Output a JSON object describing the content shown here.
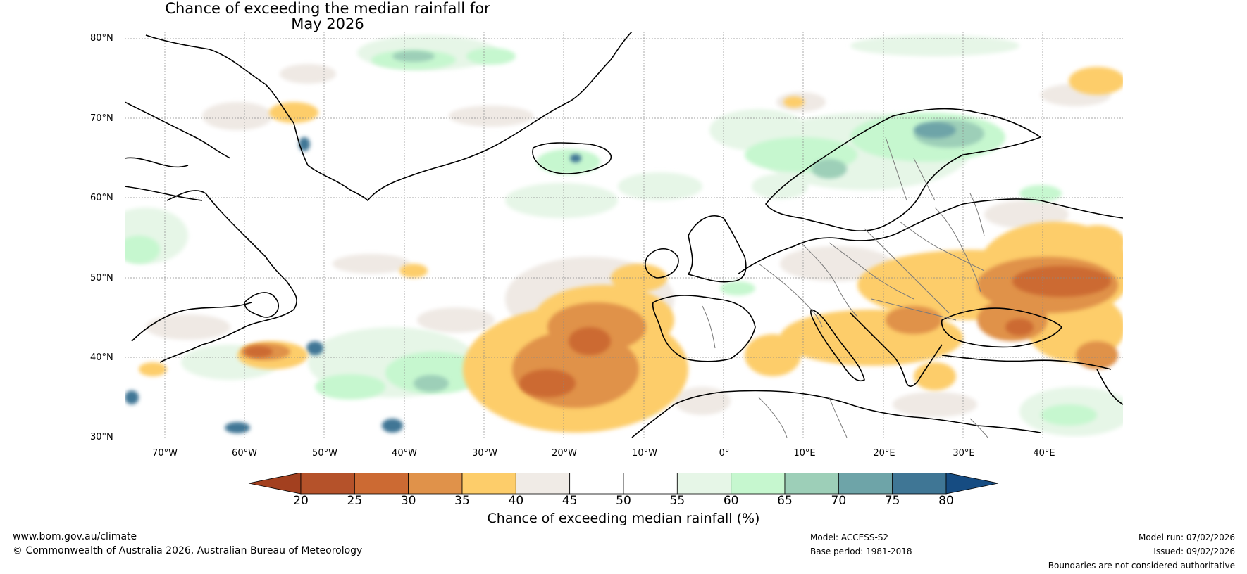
{
  "title": {
    "line1": "Chance of exceeding the median rainfall for",
    "line2": "May 2026"
  },
  "map": {
    "lat_labels": [
      "80°N",
      "70°N",
      "60°N",
      "50°N",
      "40°N",
      "30°N"
    ],
    "lon_labels": [
      "70°W",
      "60°W",
      "50°W",
      "40°W",
      "30°W",
      "20°W",
      "10°W",
      "0°",
      "10°E",
      "20°E",
      "30°E",
      "40°E"
    ],
    "extent": {
      "lon_min": -75,
      "lon_max": 50,
      "lat_min": 30,
      "lat_max": 81
    }
  },
  "colorbar": {
    "ticks": [
      "20",
      "25",
      "30",
      "35",
      "40",
      "45",
      "50",
      "55",
      "60",
      "65",
      "70",
      "75",
      "80"
    ],
    "colors": [
      "#a3401f",
      "#b5522a",
      "#cc6a33",
      "#e0924a",
      "#fdcd6a",
      "#f0ebe6",
      "#ffffff",
      "#ffffff",
      "#e6f6e7",
      "#c6f7cf",
      "#9dcfb8",
      "#6ea4a8",
      "#3f7695",
      "#164c82"
    ],
    "label": "Chance of exceeding median rainfall (%)"
  },
  "footer": {
    "website": "www.bom.gov.au/climate",
    "copyright": "© Commonwealth of Australia 2026, Australian Bureau of Meteorology",
    "model": "Model: ACCESS-S2",
    "base_period": "Base period: 1981-2018",
    "model_run": "Model run: 07/02/2026",
    "issued": "Issued: 09/02/2026",
    "disclaimer": "Boundaries are not considered authoritative"
  }
}
